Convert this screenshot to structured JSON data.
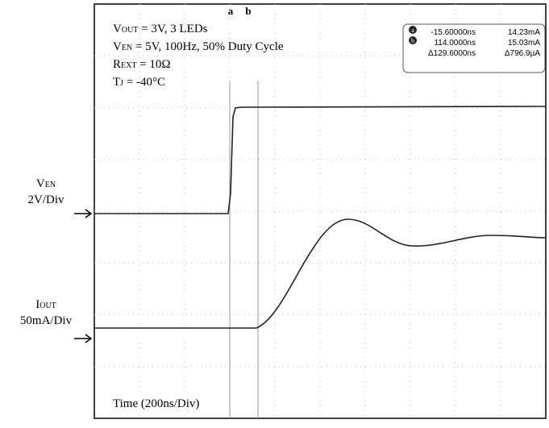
{
  "settings": [
    {
      "base": "V",
      "sub": "OUT",
      "rest": " = 3V, 3 LEDs"
    },
    {
      "base": "V",
      "sub": "EN",
      "rest": " = 5V, 100Hz, 50% Duty Cycle"
    },
    {
      "base": "R",
      "sub": "EXT",
      "rest": " = 10Ω"
    },
    {
      "base": "T",
      "sub": "J",
      "rest": " = -40°C"
    }
  ],
  "channels": [
    {
      "base": "V",
      "sub": "EN",
      "scale": "2V/Div"
    },
    {
      "base": "I",
      "sub": "OUT",
      "scale": "50mA/Div"
    }
  ],
  "cursors": {
    "labels": [
      "a",
      "b"
    ],
    "rows": [
      [
        "-15.60000ns",
        "14.23mA"
      ],
      [
        "114.0000ns",
        "15.03mA"
      ],
      [
        "Δ129.6000ns",
        "Δ796.9µA"
      ]
    ]
  },
  "time_scale": "Time (200ns/Div)"
}
